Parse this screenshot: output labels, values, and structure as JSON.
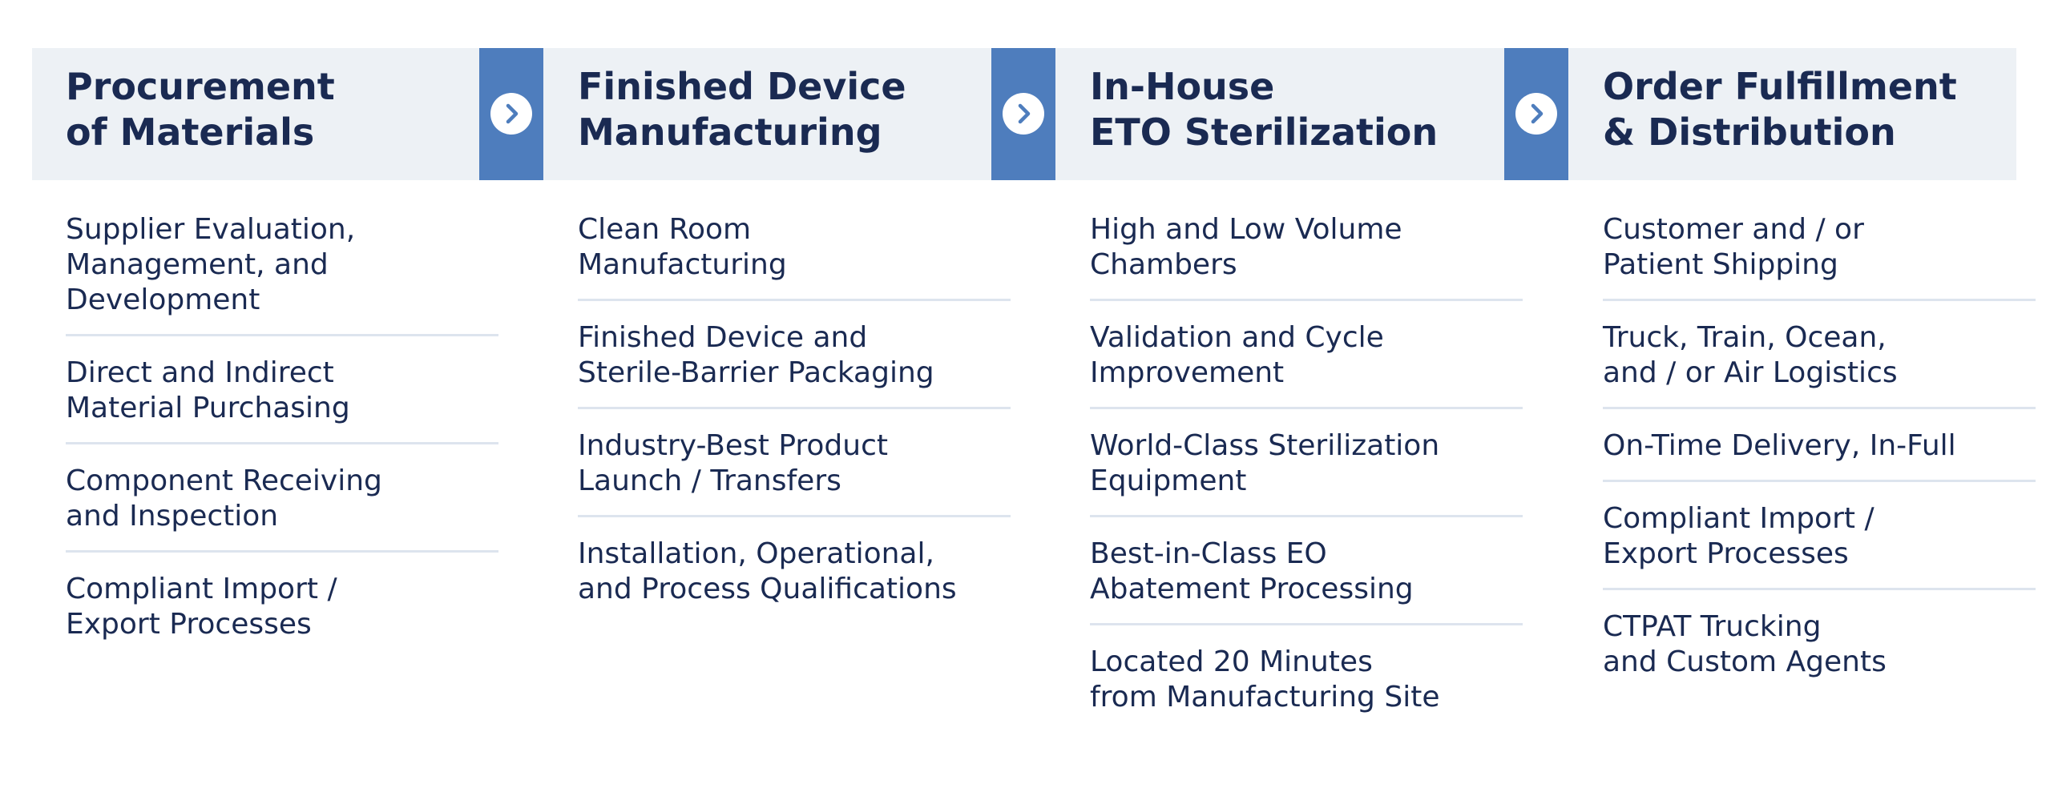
{
  "stages": [
    {
      "title": "Procurement\nof Materials",
      "items": [
        "Supplier Evaluation,\nManagement, and\nDevelopment",
        "Direct and Indirect\nMaterial Purchasing",
        "Component Receiving\nand Inspection",
        "Compliant Import /\nExport Processes"
      ]
    },
    {
      "title": "Finished Device\nManufacturing",
      "items": [
        "Clean Room\nManufacturing",
        "Finished Device and\nSterile-Barrier Packaging",
        "Industry-Best Product\nLaunch / Transfers",
        "Installation, Operational,\nand Process Qualifications"
      ]
    },
    {
      "title": "In-House\nETO Sterilization",
      "items": [
        "High and Low Volume\nChambers",
        "Validation and Cycle\nImprovement",
        "World-Class Sterilization\nEquipment",
        "Best-in-Class EO\nAbatement Processing",
        "Located 20 Minutes\nfrom Manufacturing Site"
      ]
    },
    {
      "title": "Order Fulfillment\n& Distribution",
      "items": [
        "Customer and / or\nPatient Shipping",
        "Truck, Train, Ocean,\nand / or Air Logistics",
        "On-Time Delivery, In-Full",
        "Compliant Import /\nExport Processes",
        "CTPAT Trucking\nand Custom Agents"
      ]
    }
  ],
  "icons": {
    "connector": "chevron-right-icon"
  },
  "colors": {
    "header_background": "#edf1f5",
    "connector_band": "#4e7dbd",
    "text": "#1a2a52",
    "divider": "#dde4ee"
  }
}
